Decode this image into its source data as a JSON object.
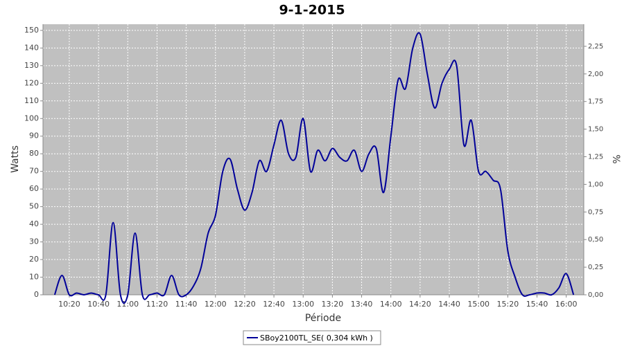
{
  "chart_data": {
    "type": "line",
    "title": "9-1-2015",
    "x_label": "Période",
    "y_label": "Watts",
    "y2_label": "%",
    "x": [
      "10:10",
      "10:15",
      "10:20",
      "10:25",
      "10:30",
      "10:35",
      "10:40",
      "10:45",
      "10:50",
      "10:55",
      "11:00",
      "11:05",
      "11:10",
      "11:15",
      "11:20",
      "11:25",
      "11:30",
      "11:35",
      "11:40",
      "11:45",
      "11:50",
      "11:55",
      "12:00",
      "12:05",
      "12:10",
      "12:15",
      "12:20",
      "12:25",
      "12:30",
      "12:35",
      "12:40",
      "12:45",
      "12:50",
      "12:55",
      "13:00",
      "13:05",
      "13:10",
      "13:15",
      "13:20",
      "13:25",
      "13:30",
      "13:35",
      "13:40",
      "13:45",
      "13:50",
      "13:55",
      "14:00",
      "14:05",
      "14:10",
      "14:15",
      "14:20",
      "14:25",
      "14:30",
      "14:35",
      "14:40",
      "14:45",
      "14:50",
      "14:55",
      "15:00",
      "15:05",
      "15:10",
      "15:15",
      "15:20",
      "15:25",
      "15:30",
      "15:35",
      "15:40",
      "15:45",
      "15:50",
      "15:55",
      "16:00",
      "16:05"
    ],
    "series": [
      {
        "name": "SBoy2100TL_SE( 0,304 kWh )",
        "color": "#000099",
        "values": [
          0,
          11,
          0,
          1,
          0,
          1,
          0,
          0,
          41,
          0,
          0,
          35,
          0,
          0,
          1,
          0,
          11,
          0,
          0,
          5,
          15,
          35,
          45,
          70,
          77,
          60,
          48,
          58,
          76,
          70,
          85,
          99,
          80,
          78,
          100,
          70,
          82,
          76,
          83,
          78,
          76,
          82,
          70,
          80,
          83,
          58,
          90,
          122,
          117,
          140,
          148,
          125,
          106,
          120,
          128,
          130,
          85,
          99,
          70,
          70,
          65,
          60,
          25,
          10,
          0,
          0,
          1,
          1,
          0,
          4,
          12,
          0
        ]
      }
    ],
    "xlim": [
      "10:02",
      "16:12"
    ],
    "xticks": [
      "10:20",
      "10:40",
      "11:00",
      "11:20",
      "11:40",
      "12:00",
      "12:20",
      "12:40",
      "13:00",
      "13:20",
      "13:40",
      "14:00",
      "14:20",
      "14:40",
      "15:00",
      "15:20",
      "15:40",
      "16:00"
    ],
    "ylim": [
      0,
      153.5
    ],
    "yticks": [
      0,
      10,
      20,
      30,
      40,
      50,
      60,
      70,
      80,
      90,
      100,
      110,
      120,
      130,
      140,
      150
    ],
    "y2lim": [
      0,
      2.45
    ],
    "y2ticks": [
      {
        "value": 0,
        "label": "0,00"
      },
      {
        "value": 0.25,
        "label": "0,25"
      },
      {
        "value": 0.5,
        "label": "0,50"
      },
      {
        "value": 0.75,
        "label": "0,75"
      },
      {
        "value": 1,
        "label": "1,00"
      },
      {
        "value": 1.25,
        "label": "1,25"
      },
      {
        "value": 1.5,
        "label": "1,50"
      },
      {
        "value": 1.75,
        "label": "1,75"
      },
      {
        "value": 2,
        "label": "2,00"
      },
      {
        "value": 2.25,
        "label": "2,25"
      }
    ],
    "grid": true,
    "legend": "bottom"
  }
}
